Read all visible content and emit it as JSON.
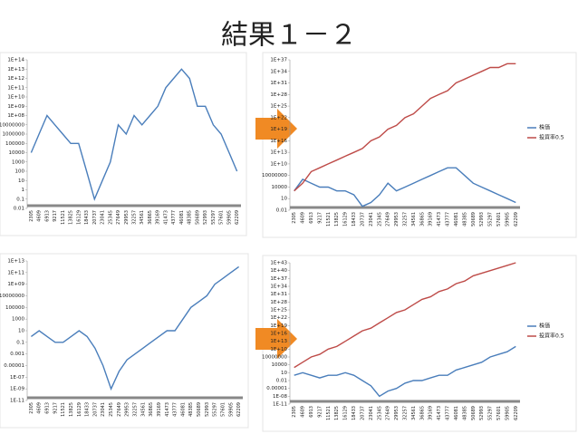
{
  "title": "結果１－２",
  "chart_data": [
    {
      "type": "line",
      "log_y": true,
      "grid": false,
      "categories": [
        "2305",
        "4609",
        "6913",
        "9217",
        "11521",
        "13825",
        "16129",
        "18433",
        "20737",
        "23041",
        "25345",
        "27649",
        "29953",
        "32257",
        "34561",
        "36865",
        "39169",
        "41473",
        "43777",
        "46081",
        "48385",
        "50689",
        "52993",
        "55297",
        "57601",
        "59905",
        "62209"
      ],
      "series": [
        {
          "color": "#4a7ebb",
          "values": [
            10000.0,
            1000000.0,
            100000000.0,
            10000000.0,
            1000000.0,
            100000.0,
            100000.0,
            100.0,
            0.1,
            10.0,
            1000.0,
            10000000.0,
            1000000.0,
            100000000.0,
            10000000.0,
            100000000.0,
            1000000000.0,
            100000000000.0,
            1000000000000.0,
            10000000000000.0,
            1000000000000.0,
            1000000000.0,
            1000000000.0,
            10000000.0,
            1000000.0,
            10000.0,
            100.0
          ]
        }
      ],
      "ylim": [
        0.01,
        100000000000000.0
      ],
      "yticks": [
        0.01,
        0.1,
        1,
        10,
        100,
        1000,
        10000,
        100000,
        1000000,
        10000000,
        {
          "value": 100000000.0,
          "label": "1E+08"
        },
        {
          "value": 1000000000.0,
          "label": "1E+09"
        },
        {
          "value": 10000000000.0,
          "label": "1E+10"
        },
        {
          "value": 100000000000.0,
          "label": "1E+11"
        },
        {
          "value": 1000000000000.0,
          "label": "1E+12"
        },
        {
          "value": 10000000000000.0,
          "label": "1E+13"
        },
        {
          "value": 100000000000000.0,
          "label": "1E+14"
        }
      ]
    },
    {
      "type": "line",
      "log_y": true,
      "grid": false,
      "legend": "right",
      "categories": [
        "2305",
        "4609",
        "6913",
        "9217",
        "11521",
        "13825",
        "16129",
        "18433",
        "20737",
        "23041",
        "25345",
        "27649",
        "29953",
        "32257",
        "34561",
        "36865",
        "39169",
        "41473",
        "43777",
        "46081",
        "48385",
        "50689",
        "52993",
        "55297",
        "57601",
        "59905",
        "62209"
      ],
      "series": [
        {
          "name": "株価",
          "color": "#4a7ebb",
          "values": [
            1000.0,
            1000000.0,
            100000.0,
            10000.0,
            10000.0,
            1000.0,
            1000.0,
            100.0,
            0.1,
            1.0,
            100.0,
            100000.0,
            1000.0,
            10000.0,
            100000.0,
            1000000.0,
            10000000.0,
            100000000.0,
            1000000000.0,
            1000000000.0,
            10000000.0,
            100000.0,
            10000.0,
            1000.0,
            100.0,
            10.0,
            1.0
          ]
        },
        {
          "name": "投資率0.5",
          "color": "#be4b48",
          "values": [
            1000.0,
            100000.0,
            100000000.0,
            1000000000.0,
            10000000000.0,
            100000000000.0,
            1000000000000.0,
            10000000000000.0,
            100000000000000.0,
            1e+16,
            1e+17,
            1e+19,
            1e+20,
            1e+22,
            1e+23,
            1e+25,
            1e+27,
            1e+28,
            1e+29,
            1e+31,
            1e+32,
            1e+33,
            1e+34,
            1e+35,
            1e+35,
            1e+36,
            1e+36
          ]
        }
      ],
      "ylim": [
        0.01,
        1e+37
      ],
      "yticks": [
        0.01,
        10,
        10000,
        10000000,
        {
          "value": 10000000000.0,
          "label": "1E+10"
        },
        {
          "value": 10000000000000.0,
          "label": "1E+13"
        },
        {
          "value": 1e+16,
          "label": "1E+16"
        },
        {
          "value": 1e+19,
          "label": "1E+19"
        },
        {
          "value": 1e+22,
          "label": "1E+22"
        },
        {
          "value": 1e+25,
          "label": "1E+25"
        },
        {
          "value": 1e+28,
          "label": "1E+28"
        },
        {
          "value": 1e+31,
          "label": "1E+31"
        },
        {
          "value": 1e+34,
          "label": "1E+34"
        },
        {
          "value": 1e+37,
          "label": "1E+37"
        }
      ]
    },
    {
      "type": "line",
      "log_y": true,
      "grid": false,
      "categories": [
        "2305",
        "4609",
        "6913",
        "9217",
        "11521",
        "13825",
        "16129",
        "18433",
        "20737",
        "23041",
        "25345",
        "27649",
        "29953",
        "32257",
        "34561",
        "36865",
        "39169",
        "41473",
        "43777",
        "46081",
        "48385",
        "50689",
        "52993",
        "55297",
        "57601",
        "59905",
        "62209"
      ],
      "series": [
        {
          "color": "#4a7ebb",
          "values": [
            1.0,
            10.0,
            1.0,
            0.1,
            0.1,
            1.0,
            10.0,
            1.0,
            0.01,
            1e-05,
            1e-09,
            1e-06,
            0.0001,
            0.001,
            0.01,
            0.1,
            1.0,
            10.0,
            10.0,
            1000.0,
            100000.0,
            1000000.0,
            10000000.0,
            1000000000.0,
            10000000000.0,
            100000000000.0,
            1000000000000.0
          ]
        }
      ],
      "ylim": [
        1e-11,
        10000000000000.0
      ],
      "yticks": [
        {
          "value": 1e-11,
          "label": "1E-11"
        },
        {
          "value": 1e-09,
          "label": "1E-09"
        },
        {
          "value": 1e-07,
          "label": "1E-07"
        },
        1e-05,
        0.001,
        0.1,
        10,
        1000,
        100000,
        10000000,
        {
          "value": 1000000000.0,
          "label": "1E+09"
        },
        {
          "value": 100000000000.0,
          "label": "1E+11"
        },
        {
          "value": 10000000000000.0,
          "label": "1E+13"
        }
      ]
    },
    {
      "type": "line",
      "log_y": true,
      "grid": false,
      "legend": "right",
      "categories": [
        "2305",
        "4609",
        "6913",
        "9217",
        "11521",
        "13825",
        "16129",
        "18433",
        "20737",
        "23041",
        "25345",
        "27649",
        "29953",
        "32257",
        "34561",
        "36865",
        "39169",
        "41473",
        "43777",
        "46081",
        "48385",
        "50689",
        "52993",
        "55297",
        "57601",
        "59905",
        "62209"
      ],
      "series": [
        {
          "name": "株価",
          "color": "#4a7ebb",
          "values": [
            1.0,
            10.0,
            1.0,
            0.1,
            1.0,
            1.0,
            10.0,
            1.0,
            0.01,
            0.0001,
            1e-08,
            1e-06,
            1e-05,
            0.001,
            0.01,
            0.01,
            0.1,
            1.0,
            1.0,
            100.0,
            1000.0,
            10000.0,
            100000.0,
            10000000.0,
            100000000.0,
            1000000000.0,
            100000000000.0
          ]
        },
        {
          "name": "投資率0.5",
          "color": "#be4b48",
          "values": [
            1000.0,
            100000.0,
            10000000.0,
            100000000.0,
            10000000000.0,
            100000000000.0,
            10000000000000.0,
            1000000000000000.0,
            1e+17,
            1e+18,
            1e+20,
            1e+22,
            1e+24,
            1e+25,
            1e+27,
            1e+29,
            1e+30,
            1e+32,
            1e+33,
            1e+35,
            1e+36,
            1e+38,
            1e+39,
            1e+40,
            1e+41,
            1e+42,
            1e+43
          ]
        }
      ],
      "ylim": [
        1e-11,
        1e+43
      ],
      "yticks": [
        {
          "value": 1e-11,
          "label": "1E-11"
        },
        {
          "value": 1e-08,
          "label": "1E-08"
        },
        1e-05,
        0.01,
        10,
        10000,
        10000000,
        {
          "value": 10000000000.0,
          "label": "1E+10"
        },
        {
          "value": 10000000000000.0,
          "label": "1E+13"
        },
        {
          "value": 1e+16,
          "label": "1E+16"
        },
        {
          "value": 1e+19,
          "label": "1E+19"
        },
        {
          "value": 1e+22,
          "label": "1E+22"
        },
        {
          "value": 1e+25,
          "label": "1E+25"
        },
        {
          "value": 1e+28,
          "label": "1E+28"
        },
        {
          "value": 1e+31,
          "label": "1E+31"
        },
        {
          "value": 1e+34,
          "label": "1E+34"
        },
        {
          "value": 1e+37,
          "label": "1E+37"
        },
        {
          "value": 1e+40,
          "label": "1E+40"
        },
        {
          "value": 1e+43,
          "label": "1E+43"
        }
      ]
    }
  ]
}
